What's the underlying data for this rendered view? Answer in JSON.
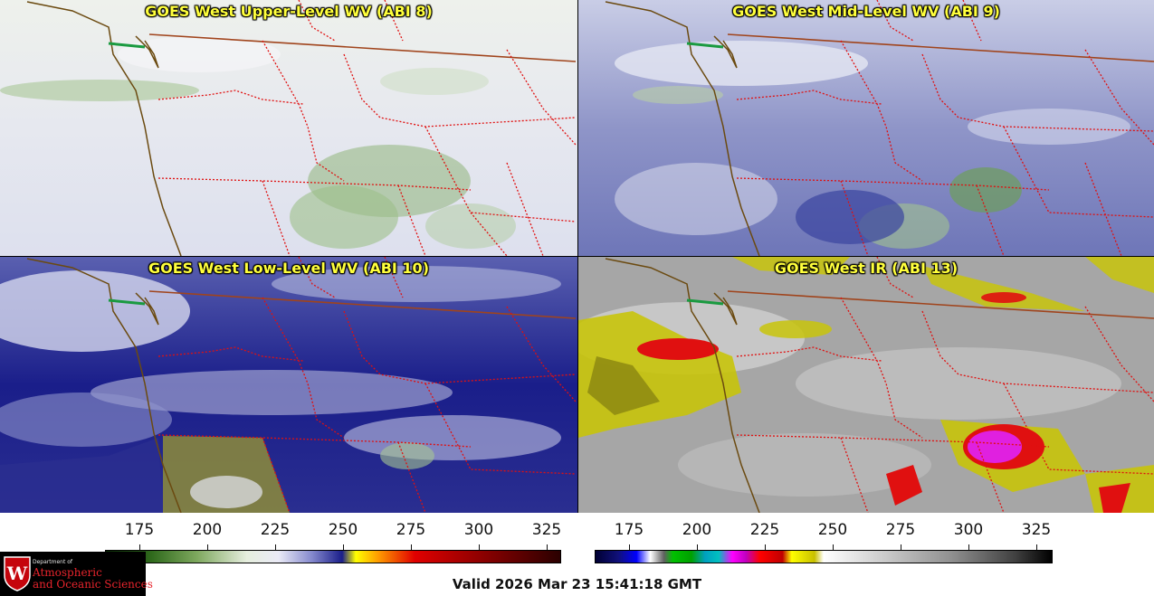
{
  "panels": [
    {
      "title": "GOES West Upper-Level WV (ABI 8)"
    },
    {
      "title": "GOES West Mid-Level WV (ABI 9)"
    },
    {
      "title": "GOES West Low-Level WV (ABI 10)"
    },
    {
      "title": "GOES West IR (ABI 13)"
    }
  ],
  "colorbars": [
    {
      "ticks": [
        "175",
        "200",
        "225",
        "250",
        "275",
        "300",
        "325"
      ]
    },
    {
      "ticks": [
        "175",
        "200",
        "225",
        "250",
        "275",
        "300",
        "325"
      ]
    }
  ],
  "logo": {
    "dept": "Department of",
    "line1": "Atmospheric",
    "line2": "and Oceanic Sciences"
  },
  "valid_time": "Valid 2026 Mar 23 15:41:18 GMT",
  "colors": {
    "border_state": "#e01010",
    "border_country": "#a0441c",
    "coastline": "#6b4a10",
    "title": "#ffff3c"
  }
}
